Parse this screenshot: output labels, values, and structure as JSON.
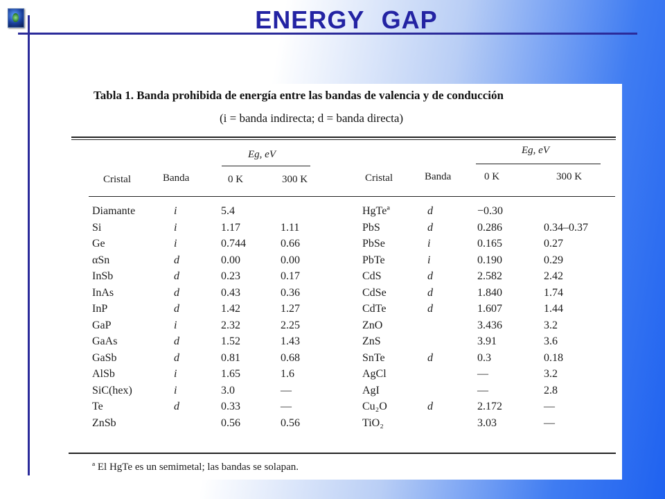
{
  "slide": {
    "title": "ENERGY   GAP",
    "logo_icon": "globe-icon"
  },
  "table": {
    "caption_line1": "Tabla 1.  Banda prohibida de energía entre las bandas de valencia y de conducción",
    "caption_line2": "(i = banda indirecta; d = banda directa)",
    "header": {
      "eg_group": "Eg, eV",
      "crystal": "Cristal",
      "band": "Banda",
      "k0": "0 K",
      "k300": "300 K"
    },
    "left_rows": [
      {
        "crystal": "Diamante",
        "band": "i",
        "k0": "5.4",
        "k300": ""
      },
      {
        "crystal": "Si",
        "band": "i",
        "k0": "1.17",
        "k300": "1.11"
      },
      {
        "crystal": "Ge",
        "band": "i",
        "k0": "0.744",
        "k300": "0.66"
      },
      {
        "crystal": "αSn",
        "band": "d",
        "k0": "0.00",
        "k300": "0.00"
      },
      {
        "crystal": "InSb",
        "band": "d",
        "k0": "0.23",
        "k300": "0.17"
      },
      {
        "crystal": "InAs",
        "band": "d",
        "k0": "0.43",
        "k300": "0.36"
      },
      {
        "crystal": "InP",
        "band": "d",
        "k0": "1.42",
        "k300": "1.27"
      },
      {
        "crystal": "GaP",
        "band": "i",
        "k0": "2.32",
        "k300": "2.25"
      },
      {
        "crystal": "GaAs",
        "band": "d",
        "k0": "1.52",
        "k300": "1.43"
      },
      {
        "crystal": "GaSb",
        "band": "d",
        "k0": "0.81",
        "k300": "0.68"
      },
      {
        "crystal": "AlSb",
        "band": "i",
        "k0": "1.65",
        "k300": "1.6"
      },
      {
        "crystal": "SiC(hex)",
        "band": "i",
        "k0": "3.0",
        "k300": "—"
      },
      {
        "crystal": "Te",
        "band": "d",
        "k0": "0.33",
        "k300": "—"
      },
      {
        "crystal": "ZnSb",
        "band": "",
        "k0": "0.56",
        "k300": "0.56"
      }
    ],
    "right_rows": [
      {
        "crystal": "HgTeª",
        "band": "d",
        "k0": "−0.30",
        "k300": ""
      },
      {
        "crystal": "PbS",
        "band": "d",
        "k0": "0.286",
        "k300": "0.34–0.37"
      },
      {
        "crystal": "PbSe",
        "band": "i",
        "k0": "0.165",
        "k300": "0.27"
      },
      {
        "crystal": "PbTe",
        "band": "i",
        "k0": "0.190",
        "k300": "0.29"
      },
      {
        "crystal": "CdS",
        "band": "d",
        "k0": "2.582",
        "k300": "2.42"
      },
      {
        "crystal": "CdSe",
        "band": "d",
        "k0": "1.840",
        "k300": "1.74"
      },
      {
        "crystal": "CdTe",
        "band": "d",
        "k0": "1.607",
        "k300": "1.44"
      },
      {
        "crystal": "ZnO",
        "band": "",
        "k0": "3.436",
        "k300": "3.2"
      },
      {
        "crystal": "ZnS",
        "band": "",
        "k0": "3.91",
        "k300": "3.6"
      },
      {
        "crystal": "SnTe",
        "band": "d",
        "k0": "0.3",
        "k300": "0.18"
      },
      {
        "crystal": "AgCl",
        "band": "",
        "k0": "—",
        "k300": "3.2"
      },
      {
        "crystal": "AgI",
        "band": "",
        "k0": "—",
        "k300": "2.8"
      },
      {
        "crystal": "Cu₂O",
        "band": "d",
        "k0": "2.172",
        "k300": "—"
      },
      {
        "crystal": "TiO₂",
        "band": "",
        "k0": "3.03",
        "k300": "—"
      }
    ],
    "footnote": "ª El HgTe es un semimetal; las bandas se solapan."
  }
}
